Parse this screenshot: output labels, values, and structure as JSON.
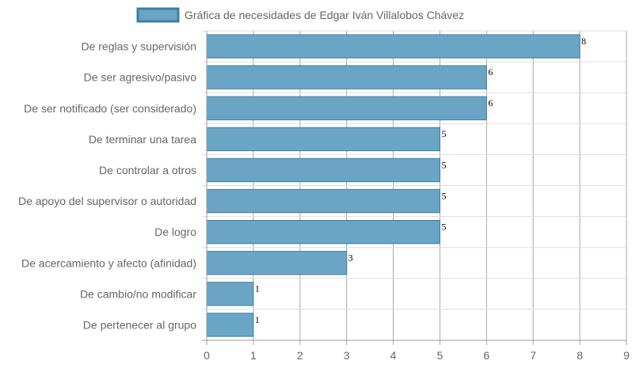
{
  "chart_data": {
    "type": "bar",
    "orientation": "horizontal",
    "title": "",
    "xlabel": "",
    "ylabel": "",
    "xlim": [
      0,
      9
    ],
    "xticks": [
      0,
      1,
      2,
      3,
      4,
      5,
      6,
      7,
      8,
      9
    ],
    "grid": true,
    "legend_position": "top-center",
    "categories": [
      "De reglas y supervisión",
      "De ser agresivo/pasivo",
      "De ser notificado (ser considerado)",
      "De terminar una tarea",
      "De controlar a otros",
      "De apoyo del supervisor o autoridad",
      "De logro",
      "De acercamiento y afecto (afinidad)",
      "De cambio/no modificar",
      "De pertenecer al grupo"
    ],
    "series": [
      {
        "name": "Gráfica de necesidades de Edgar Iván Villalobos Chávez",
        "values": [
          8,
          6,
          6,
          5,
          5,
          5,
          5,
          3,
          1,
          1
        ],
        "color": "#6ba5c5",
        "border_color": "#3e7fa3"
      }
    ]
  }
}
